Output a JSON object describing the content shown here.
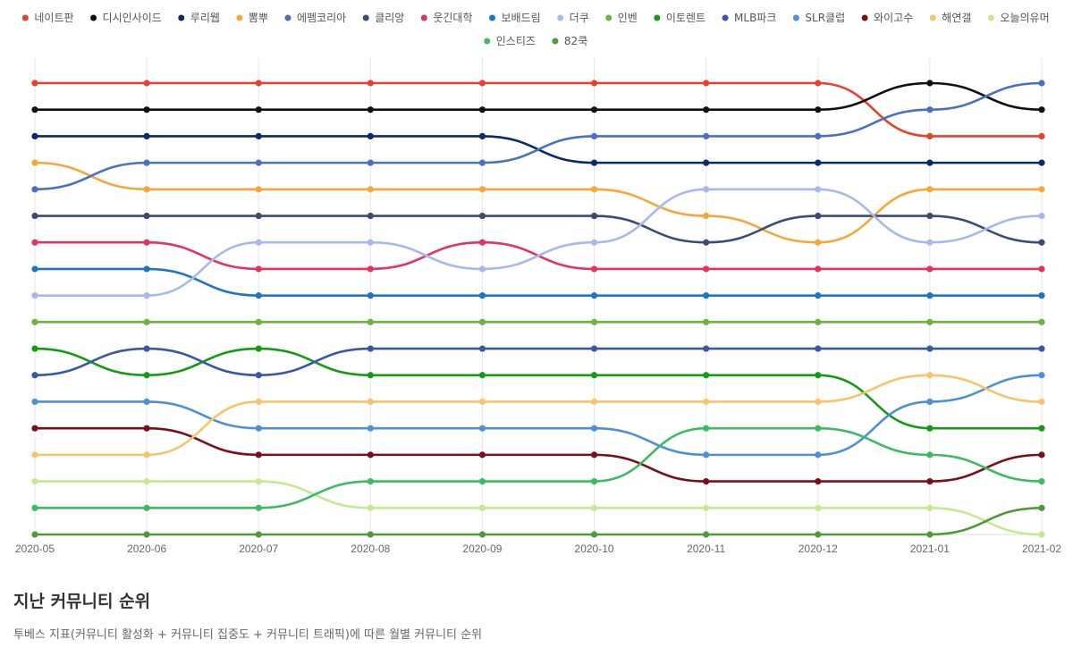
{
  "chart_data": {
    "type": "line",
    "subtype": "bump",
    "x": [
      "2020-05",
      "2020-06",
      "2020-07",
      "2020-08",
      "2020-09",
      "2020-10",
      "2020-11",
      "2020-12",
      "2021-01",
      "2021-02"
    ],
    "y_axis": {
      "reversed": true,
      "min_rank": 1,
      "max_rank": 18,
      "tick_labels_shown": false
    },
    "grid": {
      "vertical": true,
      "horizontal": false
    },
    "legend_position": "top",
    "series": [
      {
        "name": "네이트판",
        "color": "#e8412a",
        "values": [
          1,
          1,
          1,
          1,
          1,
          1,
          1,
          1,
          3,
          3
        ]
      },
      {
        "name": "디시인사이드",
        "color": "#111111",
        "values": [
          2,
          2,
          2,
          2,
          2,
          2,
          2,
          2,
          1,
          2
        ]
      },
      {
        "name": "루리웹",
        "color": "#0b2a6b",
        "values": [
          3,
          3,
          3,
          3,
          3,
          4,
          4,
          4,
          4,
          4
        ]
      },
      {
        "name": "뽐뿌",
        "color": "#f5a83a",
        "values": [
          4,
          5,
          5,
          5,
          5,
          5,
          6,
          7,
          5,
          5
        ]
      },
      {
        "name": "에펨코리아",
        "color": "#4a6fc4",
        "values": [
          5,
          4,
          4,
          4,
          4,
          3,
          3,
          3,
          2,
          1
        ]
      },
      {
        "name": "클리앙",
        "color": "#3c4a7a",
        "values": [
          6,
          6,
          6,
          6,
          6,
          6,
          7,
          6,
          6,
          7
        ]
      },
      {
        "name": "웃긴대학",
        "color": "#e4335d",
        "values": [
          7,
          7,
          8,
          8,
          7,
          8,
          8,
          8,
          8,
          8
        ]
      },
      {
        "name": "보배드림",
        "color": "#1f75c4",
        "values": [
          8,
          8,
          9,
          9,
          9,
          9,
          9,
          9,
          9,
          9
        ]
      },
      {
        "name": "더쿠",
        "color": "#a9b8ec",
        "values": [
          9,
          9,
          7,
          7,
          8,
          7,
          5,
          5,
          7,
          6
        ]
      },
      {
        "name": "인벤",
        "color": "#6cb33f",
        "values": [
          10,
          10,
          10,
          10,
          10,
          10,
          10,
          10,
          10,
          10
        ]
      },
      {
        "name": "이토렌트",
        "color": "#149b14",
        "values": [
          11,
          12,
          11,
          12,
          12,
          12,
          12,
          12,
          14,
          14
        ]
      },
      {
        "name": "MLB파크",
        "color": "#3a56a8",
        "values": [
          12,
          11,
          12,
          11,
          11,
          11,
          11,
          11,
          11,
          11
        ]
      },
      {
        "name": "SLR클럽",
        "color": "#4d90d6",
        "values": [
          13,
          13,
          14,
          14,
          14,
          14,
          15,
          15,
          13,
          12
        ]
      },
      {
        "name": "와이고수",
        "color": "#7a0f1a",
        "values": [
          14,
          14,
          15,
          15,
          15,
          15,
          16,
          16,
          16,
          15
        ]
      },
      {
        "name": "해연갤",
        "color": "#f7c46a",
        "values": [
          15,
          15,
          13,
          13,
          13,
          13,
          13,
          13,
          12,
          13
        ]
      },
      {
        "name": "오늘의유머",
        "color": "#c6e98d",
        "values": [
          16,
          16,
          16,
          17,
          17,
          17,
          17,
          17,
          17,
          18
        ]
      },
      {
        "name": "인스티즈",
        "color": "#3dbb63",
        "values": [
          17,
          17,
          17,
          16,
          16,
          16,
          14,
          14,
          15,
          16
        ]
      },
      {
        "name": "82쿡",
        "color": "#4f9a38",
        "values": [
          18,
          18,
          18,
          18,
          18,
          18,
          18,
          18,
          18,
          17
        ]
      }
    ]
  },
  "caption": {
    "title": "지난 커뮤니티 순위",
    "description": "투베스 지표(커뮤니티 활성화 + 커뮤니티 집중도 + 커뮤니티 트래픽)에 따른 월별 커뮤니티 순위"
  }
}
